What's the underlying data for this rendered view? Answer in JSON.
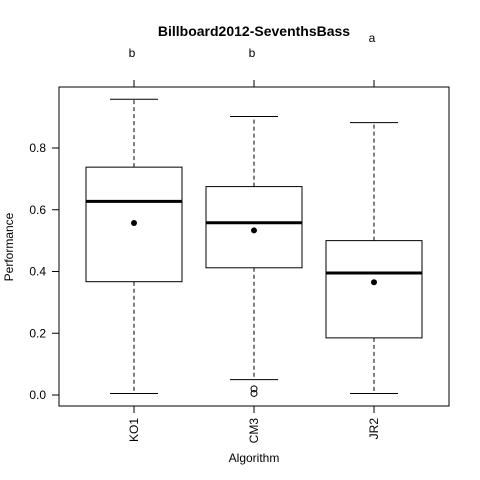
{
  "chart_data": {
    "type": "boxplot",
    "title": "Billboard2012-SeventhsBass",
    "xlabel": "Algorithm",
    "ylabel": "Performance",
    "ylim": [
      -0.04,
      1.0
    ],
    "yticks": [
      0.0,
      0.2,
      0.4,
      0.6,
      0.8
    ],
    "ytick_labels": [
      "0.0",
      "0.2",
      "0.4",
      "0.6",
      "0.8"
    ],
    "grid": false,
    "categories": [
      "KO1",
      "CM3",
      "JR2"
    ],
    "significance_labels": [
      "b",
      "b",
      "a"
    ],
    "boxes": [
      {
        "name": "KO1",
        "whisker_low": 0.005,
        "q1": 0.367,
        "median": 0.627,
        "q3": 0.738,
        "whisker_high": 0.958,
        "mean": 0.557,
        "outliers": []
      },
      {
        "name": "CM3",
        "whisker_low": 0.05,
        "q1": 0.412,
        "median": 0.558,
        "q3": 0.675,
        "whisker_high": 0.902,
        "mean": 0.533,
        "outliers": [
          0.005,
          0.02
        ]
      },
      {
        "name": "JR2",
        "whisker_low": 0.005,
        "q1": 0.185,
        "median": 0.395,
        "q3": 0.5,
        "whisker_high": 0.882,
        "mean": 0.365,
        "outliers": []
      }
    ]
  }
}
